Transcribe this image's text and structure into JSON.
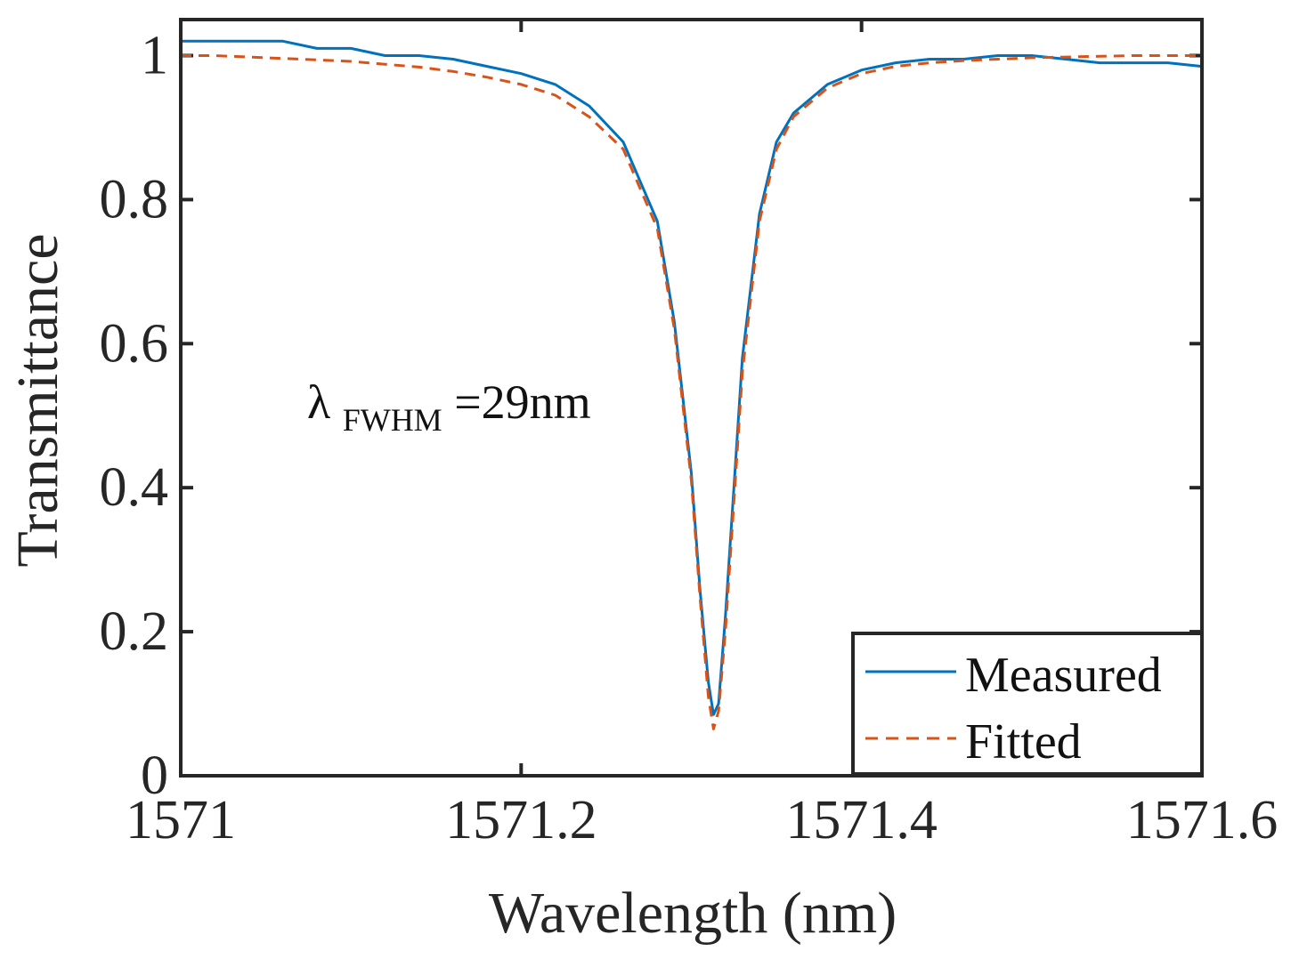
{
  "chart_data": {
    "type": "line",
    "title": "",
    "xlabel": "Wavelength (nm)",
    "ylabel": "Transmittance",
    "xlim": [
      1571,
      1571.6
    ],
    "ylim": [
      0,
      1.05
    ],
    "xticks": [
      1571,
      1571.2,
      1571.4,
      1571.6
    ],
    "xtick_labels": [
      "1571",
      "1571.2",
      "1571.4",
      "1571.6"
    ],
    "yticks": [
      0,
      0.2,
      0.4,
      0.6,
      0.8,
      1
    ],
    "ytick_labels": [
      "0",
      "0.2",
      "0.4",
      "0.6",
      "0.8",
      "1"
    ],
    "grid": false,
    "legend_position": "bottom-right",
    "annotation": {
      "main": "λ",
      "sub": "FWHM",
      "rest": "=29nm",
      "x": 1571.075,
      "y": 0.5
    },
    "resonance": {
      "center": 1571.313,
      "min_transmittance": 0.065,
      "baseline_left": 1.0,
      "baseline_right": 1.0
    },
    "series": [
      {
        "name": "Measured",
        "style": "solid",
        "color": "#0072BD",
        "x": [
          1571.0,
          1571.02,
          1571.04,
          1571.06,
          1571.08,
          1571.1,
          1571.12,
          1571.14,
          1571.16,
          1571.18,
          1571.2,
          1571.22,
          1571.24,
          1571.26,
          1571.28,
          1571.29,
          1571.3,
          1571.305,
          1571.31,
          1571.313,
          1571.316,
          1571.32,
          1571.325,
          1571.33,
          1571.34,
          1571.35,
          1571.36,
          1571.38,
          1571.4,
          1571.42,
          1571.44,
          1571.46,
          1571.48,
          1571.5,
          1571.52,
          1571.54,
          1571.56,
          1571.58,
          1571.6
        ],
        "values": [
          1.02,
          1.02,
          1.02,
          1.02,
          1.01,
          1.01,
          1.0,
          1.0,
          0.995,
          0.985,
          0.975,
          0.96,
          0.93,
          0.88,
          0.77,
          0.63,
          0.42,
          0.26,
          0.13,
          0.085,
          0.1,
          0.22,
          0.4,
          0.58,
          0.78,
          0.88,
          0.92,
          0.96,
          0.98,
          0.99,
          0.995,
          0.995,
          1.0,
          1.0,
          0.995,
          0.99,
          0.99,
          0.99,
          0.985
        ]
      },
      {
        "name": "Fitted",
        "style": "dashed",
        "color": "#D95319",
        "x": [
          1571.0,
          1571.02,
          1571.04,
          1571.06,
          1571.08,
          1571.1,
          1571.12,
          1571.14,
          1571.16,
          1571.18,
          1571.2,
          1571.22,
          1571.24,
          1571.26,
          1571.28,
          1571.29,
          1571.3,
          1571.305,
          1571.31,
          1571.313,
          1571.316,
          1571.32,
          1571.325,
          1571.33,
          1571.34,
          1571.35,
          1571.36,
          1571.38,
          1571.4,
          1571.42,
          1571.44,
          1571.46,
          1571.48,
          1571.5,
          1571.52,
          1571.54,
          1571.56,
          1571.58,
          1571.6
        ],
        "values": [
          1.0,
          1.0,
          0.998,
          0.996,
          0.994,
          0.992,
          0.988,
          0.984,
          0.978,
          0.97,
          0.96,
          0.945,
          0.915,
          0.87,
          0.76,
          0.62,
          0.41,
          0.25,
          0.11,
          0.065,
          0.09,
          0.2,
          0.38,
          0.56,
          0.77,
          0.87,
          0.915,
          0.955,
          0.975,
          0.985,
          0.99,
          0.993,
          0.995,
          0.997,
          0.998,
          0.999,
          1.0,
          1.0,
          1.0
        ]
      }
    ]
  }
}
